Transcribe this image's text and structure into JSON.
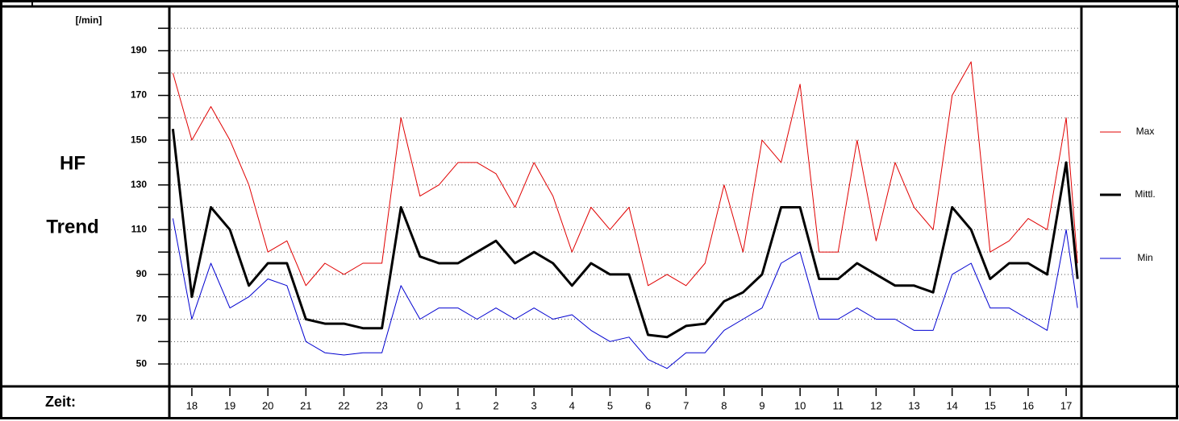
{
  "chart_data": {
    "type": "line",
    "title_lines": [
      "HF",
      "Trend"
    ],
    "y_label": "[/min]",
    "x_label": "Zeit:",
    "x": [
      -0.5,
      0,
      0.5,
      1,
      1.5,
      2,
      2.5,
      3,
      3.5,
      4,
      4.5,
      5,
      5.5,
      6,
      6.5,
      7,
      7.5,
      8,
      8.5,
      9,
      9.5,
      10,
      10.5,
      11,
      11.5,
      12,
      12.5,
      13,
      13.5,
      14,
      14.5,
      15,
      15.5,
      16,
      16.5,
      17,
      17.5,
      18,
      18.5,
      19,
      19.5,
      20,
      20.5,
      21,
      21.5,
      22,
      22.5,
      23,
      23.3
    ],
    "series": [
      {
        "name": "Max",
        "color": "#e00000",
        "width": 1,
        "values": [
          180,
          150,
          165,
          150,
          130,
          100,
          105,
          85,
          95,
          90,
          95,
          95,
          160,
          125,
          130,
          140,
          140,
          135,
          120,
          140,
          125,
          100,
          120,
          110,
          120,
          85,
          90,
          85,
          95,
          130,
          100,
          150,
          140,
          175,
          100,
          100,
          150,
          105,
          140,
          120,
          110,
          170,
          185,
          100,
          105,
          115,
          110,
          160,
          95
        ]
      },
      {
        "name": "Mittl.",
        "color": "#000000",
        "width": 3,
        "values": [
          155,
          80,
          120,
          110,
          85,
          95,
          95,
          70,
          68,
          68,
          66,
          66,
          120,
          98,
          95,
          95,
          100,
          105,
          95,
          100,
          95,
          85,
          95,
          90,
          90,
          63,
          62,
          67,
          68,
          78,
          82,
          90,
          120,
          120,
          88,
          88,
          95,
          90,
          85,
          85,
          82,
          120,
          110,
          88,
          95,
          95,
          90,
          140,
          88
        ]
      },
      {
        "name": "Min",
        "color": "#0000d0",
        "width": 1,
        "values": [
          115,
          70,
          95,
          75,
          80,
          88,
          85,
          60,
          55,
          54,
          55,
          55,
          85,
          70,
          75,
          75,
          70,
          75,
          70,
          75,
          70,
          72,
          65,
          60,
          62,
          52,
          48,
          55,
          55,
          65,
          70,
          75,
          95,
          100,
          70,
          70,
          75,
          70,
          70,
          65,
          65,
          90,
          95,
          75,
          75,
          70,
          65,
          110,
          75
        ]
      }
    ],
    "xlim": [
      -0.55,
      23.38
    ],
    "xticks": [
      {
        "value": 0,
        "label": "18"
      },
      {
        "value": 1,
        "label": "19"
      },
      {
        "value": 2,
        "label": "20"
      },
      {
        "value": 3,
        "label": "21"
      },
      {
        "value": 4,
        "label": "22"
      },
      {
        "value": 5,
        "label": "23"
      },
      {
        "value": 6,
        "label": "0"
      },
      {
        "value": 7,
        "label": "1"
      },
      {
        "value": 8,
        "label": "2"
      },
      {
        "value": 9,
        "label": "3"
      },
      {
        "value": 10,
        "label": "4"
      },
      {
        "value": 11,
        "label": "5"
      },
      {
        "value": 12,
        "label": "6"
      },
      {
        "value": 13,
        "label": "7"
      },
      {
        "value": 14,
        "label": "8"
      },
      {
        "value": 15,
        "label": "9"
      },
      {
        "value": 16,
        "label": "10"
      },
      {
        "value": 17,
        "label": "11"
      },
      {
        "value": 18,
        "label": "12"
      },
      {
        "value": 19,
        "label": "13"
      },
      {
        "value": 20,
        "label": "14"
      },
      {
        "value": 21,
        "label": "15"
      },
      {
        "value": 22,
        "label": "16"
      },
      {
        "value": 23,
        "label": "17"
      }
    ],
    "ylim": [
      40.7,
      209.4
    ],
    "yticks": [
      50,
      70,
      90,
      110,
      130,
      150,
      170,
      190
    ],
    "minor_yticks": [
      60,
      80,
      100,
      120,
      140,
      160,
      180,
      200
    ],
    "grid": true
  }
}
